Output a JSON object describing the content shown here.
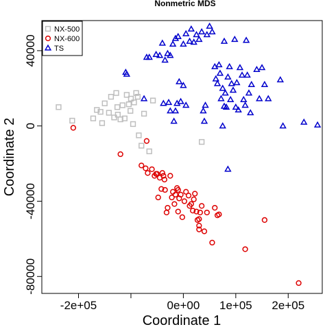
{
  "chart_data": {
    "type": "scatter",
    "title": "Nonmetric MDS",
    "xlabel": "Coordinate 1",
    "ylabel": "Coordinate 2",
    "xlim": [
      -270000,
      265000
    ],
    "ylim": [
      -89000,
      56000
    ],
    "x_ticks": [
      -200000,
      -100000,
      0,
      100000,
      200000
    ],
    "x_tick_labels": [
      "-2e+05",
      "",
      "0e+00",
      "1e+05",
      "2e+05"
    ],
    "y_ticks": [
      -80000,
      -40000,
      0,
      40000
    ],
    "y_tick_labels": [
      "-80000",
      "-40000",
      "0",
      "40000"
    ],
    "legend_position": "top-left",
    "series": [
      {
        "name": "NX-500",
        "marker": "square",
        "color": "#bebebe",
        "points": [
          [
            -238000,
            10000
          ],
          [
            -212000,
            2800
          ],
          [
            -172000,
            4000
          ],
          [
            -165000,
            8500
          ],
          [
            -158000,
            7500
          ],
          [
            -155000,
            1500
          ],
          [
            -150000,
            12000
          ],
          [
            -142000,
            7000
          ],
          [
            -138000,
            15500
          ],
          [
            -132000,
            4500
          ],
          [
            -128000,
            17500
          ],
          [
            -126000,
            10000
          ],
          [
            -125000,
            6000
          ],
          [
            -120000,
            3500
          ],
          [
            -116000,
            11000
          ],
          [
            -112000,
            4000
          ],
          [
            -108000,
            16500
          ],
          [
            -104000,
            11500
          ],
          [
            -101000,
            8000
          ],
          [
            -100000,
            14500
          ],
          [
            -96000,
            1000
          ],
          [
            -94000,
            12500
          ],
          [
            -90000,
            17500
          ],
          [
            -87000,
            15500
          ],
          [
            -85000,
            -5000
          ],
          [
            -80000,
            -10500
          ],
          [
            -75000,
            6500
          ],
          [
            -65000,
            -13500
          ],
          [
            -58000,
            13500
          ],
          [
            35000,
            -8500
          ]
        ]
      },
      {
        "name": "NX-600",
        "marker": "circle",
        "color": "#dd0000",
        "points": [
          [
            -210000,
            -1000
          ],
          [
            -120000,
            -15000
          ],
          [
            -80000,
            -21000
          ],
          [
            -72000,
            -22500
          ],
          [
            -70000,
            -8000
          ],
          [
            -68000,
            -25000
          ],
          [
            -60000,
            -23000
          ],
          [
            -55000,
            -26500
          ],
          [
            -52000,
            -25500
          ],
          [
            -50000,
            -25500
          ],
          [
            -48000,
            -38000
          ],
          [
            -45000,
            -27500
          ],
          [
            -42000,
            -33500
          ],
          [
            -40000,
            -25000
          ],
          [
            -38000,
            -26500
          ],
          [
            -36000,
            -28500
          ],
          [
            -35000,
            -34000
          ],
          [
            -30000,
            -43500
          ],
          [
            -25000,
            -26500
          ],
          [
            -22000,
            -38000
          ],
          [
            -20000,
            -35000
          ],
          [
            -17000,
            -41500
          ],
          [
            -15000,
            -36500
          ],
          [
            -12000,
            -33000
          ],
          [
            -10000,
            -34000
          ],
          [
            -8000,
            -38500
          ],
          [
            -5000,
            -36500
          ],
          [
            -2000,
            -48500
          ],
          [
            -32000,
            -46000
          ],
          [
            -10000,
            -45500
          ],
          [
            2000,
            -40000
          ],
          [
            5000,
            -35000
          ],
          [
            10000,
            -37000
          ],
          [
            12000,
            -42500
          ],
          [
            15000,
            -41500
          ],
          [
            18000,
            -45000
          ],
          [
            20000,
            -39000
          ],
          [
            22000,
            -36000
          ],
          [
            25000,
            -45500
          ],
          [
            27000,
            -50000
          ],
          [
            30000,
            -49500
          ],
          [
            30000,
            -53000
          ],
          [
            30000,
            -55000
          ],
          [
            32000,
            -46000
          ],
          [
            35000,
            -42500
          ],
          [
            40000,
            -56000
          ],
          [
            45000,
            -46000
          ],
          [
            55000,
            -62000
          ],
          [
            60000,
            -43500
          ],
          [
            65000,
            -47500
          ],
          [
            68000,
            -47000
          ],
          [
            118000,
            -65500
          ],
          [
            155000,
            -50000
          ],
          [
            220000,
            -83500
          ]
        ]
      },
      {
        "name": "TS",
        "marker": "triangle",
        "color": "#0000cc",
        "points": [
          [
            -110000,
            28500
          ],
          [
            -108000,
            27500
          ],
          [
            -75000,
            14500
          ],
          [
            -70000,
            36500
          ],
          [
            -65000,
            36500
          ],
          [
            -52000,
            38000
          ],
          [
            -45000,
            37500
          ],
          [
            -40000,
            44000
          ],
          [
            -38000,
            12000
          ],
          [
            -35000,
            35000
          ],
          [
            -30000,
            38500
          ],
          [
            -25000,
            37500
          ],
          [
            -28000,
            12500
          ],
          [
            -25000,
            8000
          ],
          [
            -20000,
            43500
          ],
          [
            -15000,
            46500
          ],
          [
            -18000,
            2500
          ],
          [
            -15000,
            8000
          ],
          [
            -12000,
            12000
          ],
          [
            -10000,
            47500
          ],
          [
            -8000,
            23500
          ],
          [
            -5000,
            13000
          ],
          [
            0,
            43500
          ],
          [
            0,
            21500
          ],
          [
            5000,
            49000
          ],
          [
            5000,
            11000
          ],
          [
            12000,
            45000
          ],
          [
            15000,
            51500
          ],
          [
            20000,
            44500
          ],
          [
            25000,
            48500
          ],
          [
            30000,
            46000
          ],
          [
            35000,
            50000
          ],
          [
            38000,
            8000
          ],
          [
            40000,
            2500
          ],
          [
            42000,
            11000
          ],
          [
            45000,
            48500
          ],
          [
            50000,
            53000
          ],
          [
            55000,
            50000
          ],
          [
            60000,
            31500
          ],
          [
            62000,
            25000
          ],
          [
            65000,
            22500
          ],
          [
            68000,
            32500
          ],
          [
            70000,
            28000
          ],
          [
            72000,
            14500
          ],
          [
            75000,
            20000
          ],
          [
            78000,
            10500
          ],
          [
            78000,
            45000
          ],
          [
            80000,
            17500
          ],
          [
            82000,
            10000
          ],
          [
            85000,
            26000
          ],
          [
            88000,
            31500
          ],
          [
            90000,
            14000
          ],
          [
            92000,
            22500
          ],
          [
            95000,
            19000
          ],
          [
            98000,
            46000
          ],
          [
            100000,
            10000
          ],
          [
            102000,
            23000
          ],
          [
            105000,
            8500
          ],
          [
            108000,
            31000
          ],
          [
            112000,
            27000
          ],
          [
            115000,
            14000
          ],
          [
            118000,
            11000
          ],
          [
            120000,
            45500
          ],
          [
            122000,
            27000
          ],
          [
            125000,
            17500
          ],
          [
            128000,
            7000
          ],
          [
            130000,
            22000
          ],
          [
            140000,
            30000
          ],
          [
            145000,
            14500
          ],
          [
            150000,
            31000
          ],
          [
            155000,
            22000
          ],
          [
            162000,
            14500
          ],
          [
            185000,
            24500
          ],
          [
            190000,
            0
          ],
          [
            230000,
            2000
          ],
          [
            256000,
            500
          ],
          [
            85000,
            -23000
          ],
          [
            75000,
            0
          ]
        ]
      }
    ]
  }
}
